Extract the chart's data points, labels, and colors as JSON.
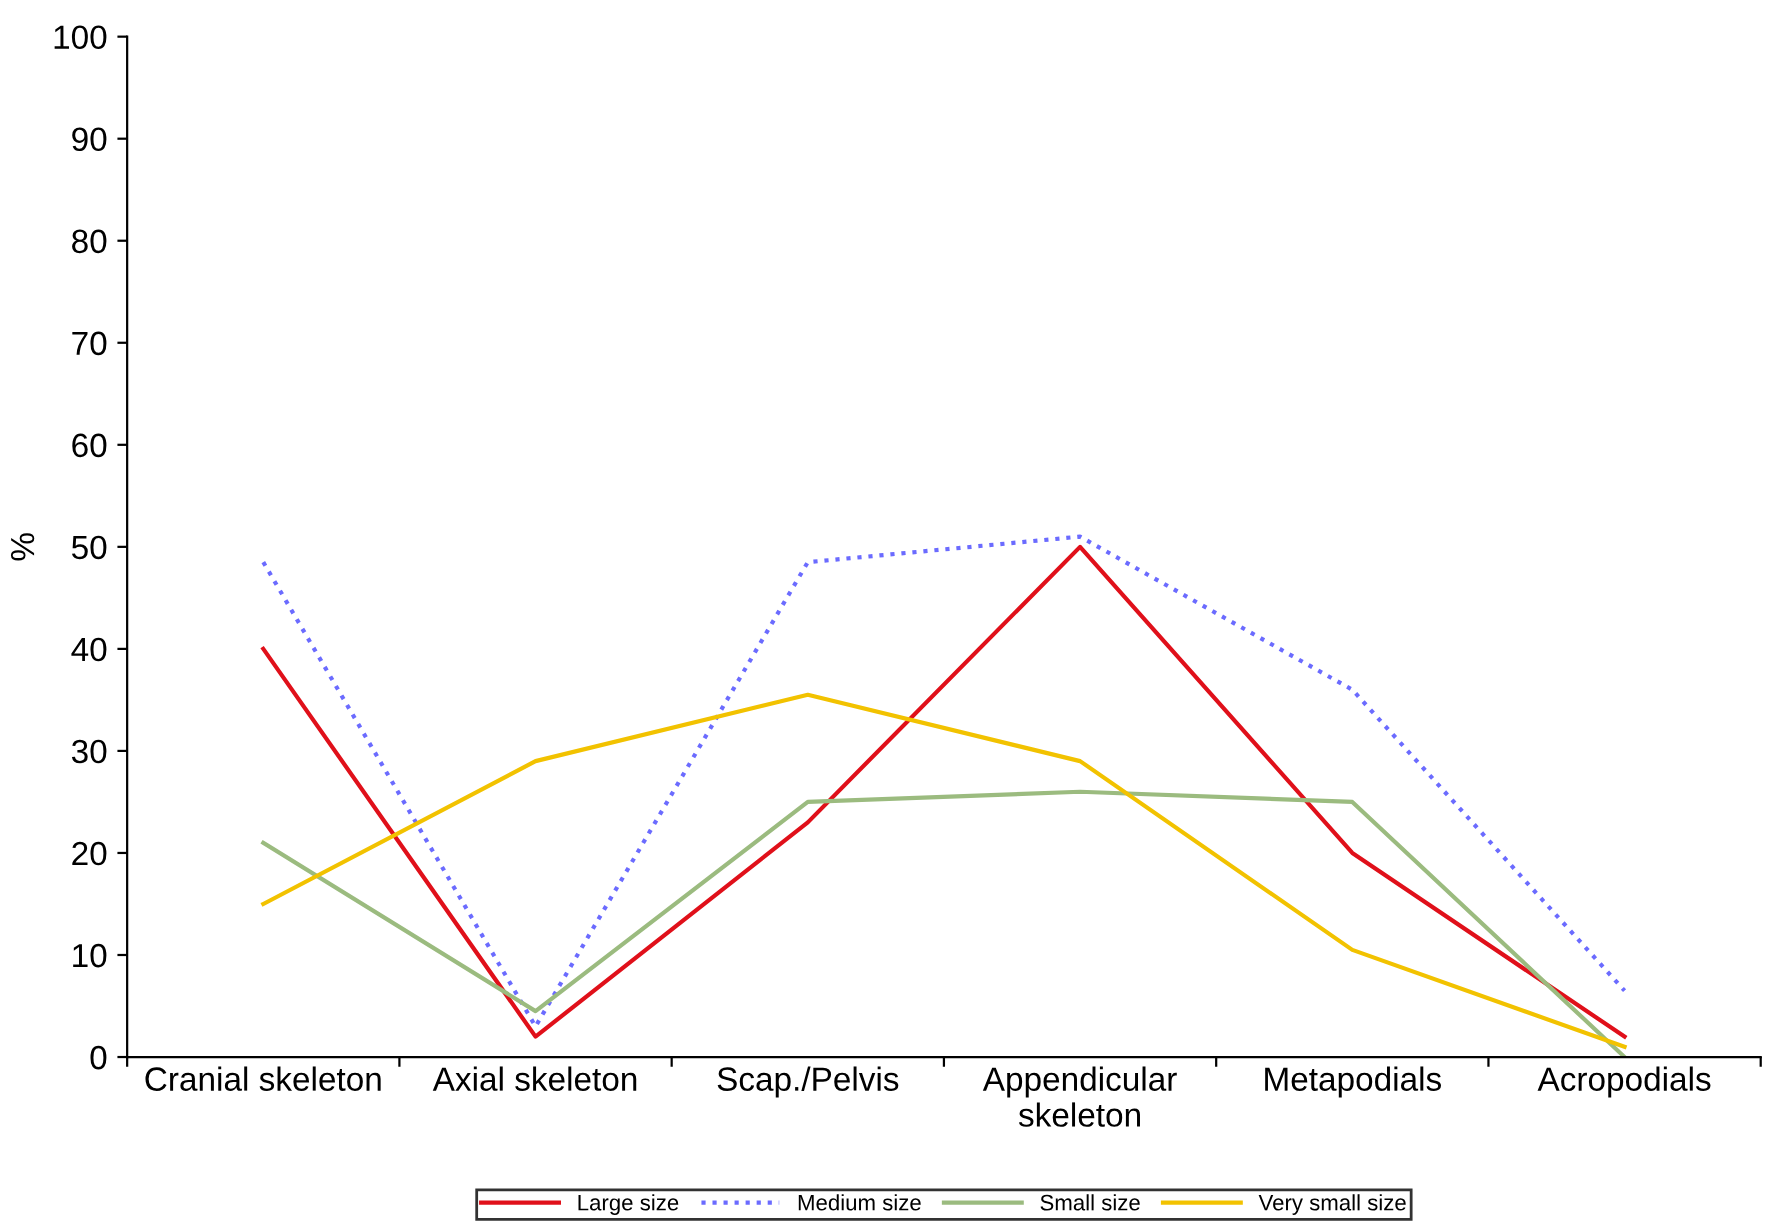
{
  "chart_data": {
    "type": "line",
    "ylabel": "%",
    "categories": [
      "Cranial skeleton",
      "Axial skeleton",
      "Scap./Pelvis",
      "Appendicular\nskeleton",
      "Metapodials",
      "Acropodials"
    ],
    "series": [
      {
        "name": "Large size",
        "color": "#e0101a",
        "values": [
          40,
          2,
          23,
          50,
          20,
          2
        ],
        "line_style": "solid"
      },
      {
        "name": "Medium size",
        "color": "#6b6bff",
        "values": [
          48.5,
          3,
          48.5,
          51,
          36,
          6.5
        ],
        "line_style": "dotted"
      },
      {
        "name": "Small size",
        "color": "#9bbb7f",
        "values": [
          21,
          4.5,
          25,
          26,
          25,
          0
        ],
        "line_style": "solid"
      },
      {
        "name": "Very small size",
        "color": "#f2c200",
        "values": [
          15,
          29,
          35.5,
          29,
          10.5,
          1
        ],
        "line_style": "solid"
      }
    ],
    "ylim": [
      0,
      100
    ],
    "yticks": [
      0,
      10,
      20,
      30,
      40,
      50,
      60,
      70,
      80,
      90,
      100
    ],
    "grid": false,
    "legend": "bottom",
    "marker": "none"
  }
}
